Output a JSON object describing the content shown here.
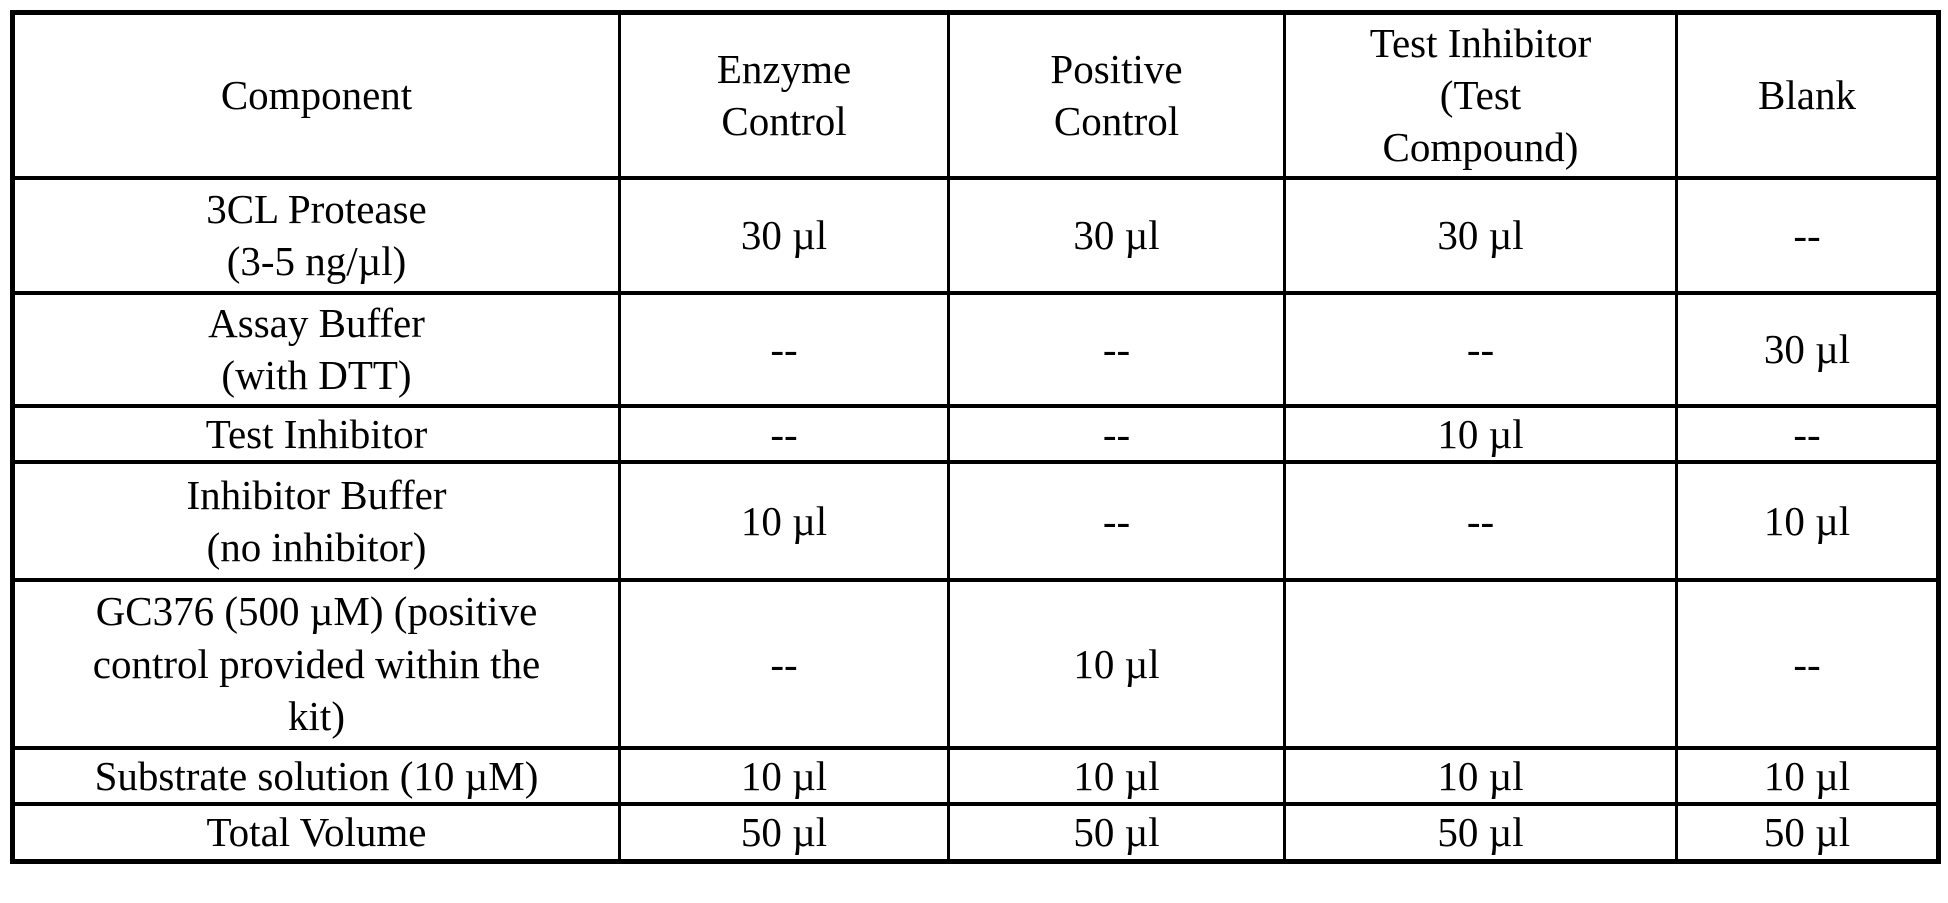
{
  "page": {
    "background_color": "#ffffff",
    "text_color": "#000000",
    "border_color": "#000000"
  },
  "table": {
    "columns": [
      "Component",
      "Enzyme\nControl",
      "Positive\nControl",
      "Test Inhibitor\n(Test\nCompound)",
      "Blank"
    ],
    "rows": [
      {
        "component": "3CL Protease\n(3-5 ng/µl)",
        "enzyme_control": "30 µl",
        "positive_control": "30 µl",
        "test_inhibitor": "30 µl",
        "blank": "--"
      },
      {
        "component": "Assay Buffer\n(with DTT)",
        "enzyme_control": "--",
        "positive_control": "--",
        "test_inhibitor": "--",
        "blank": "30 µl"
      },
      {
        "component": "Test Inhibitor",
        "enzyme_control": "--",
        "positive_control": "--",
        "test_inhibitor": "10 µl",
        "blank": "--"
      },
      {
        "component": "Inhibitor Buffer\n(no inhibitor)",
        "enzyme_control": "10 µl",
        "positive_control": "--",
        "test_inhibitor": "--",
        "blank": "10 µl"
      },
      {
        "component": "GC376 (500 µM) (positive\ncontrol provided within the\nkit)",
        "enzyme_control": "--",
        "positive_control": "10 µl",
        "test_inhibitor": "",
        "blank": "--"
      },
      {
        "component": "Substrate solution (10 µM)",
        "enzyme_control": "10 µl",
        "positive_control": "10 µl",
        "test_inhibitor": "10 µl",
        "blank": "10 µl"
      },
      {
        "component": "Total Volume",
        "enzyme_control": "50 µl",
        "positive_control": "50 µl",
        "test_inhibitor": "50 µl",
        "blank": "50 µl"
      }
    ]
  }
}
